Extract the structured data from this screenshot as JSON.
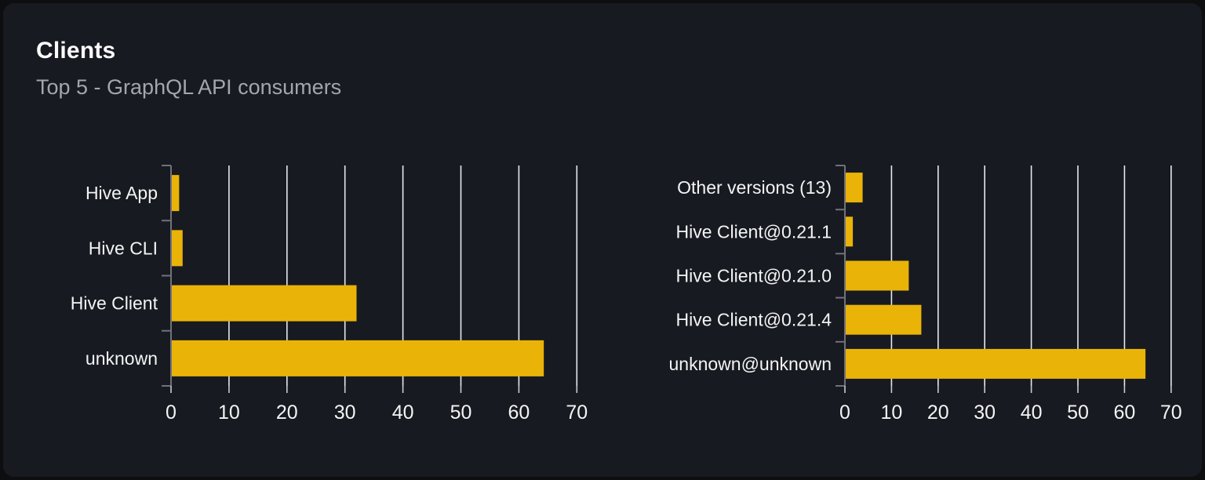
{
  "card": {
    "title": "Clients",
    "subtitle": "Top 5 - GraphQL API consumers"
  },
  "colors": {
    "bar": "#eab308",
    "gridline": "#e6e8ee",
    "axis": "#71717a",
    "x_tick": "#c9ccd4",
    "label": "#f4f4f5",
    "title": "#fcfcfc",
    "subtitle": "#a5a6ad",
    "card_bg": "#171a20",
    "page_bg": "#0d0e10"
  },
  "chart_data": [
    {
      "type": "bar",
      "orientation": "horizontal",
      "name": "clients-top5",
      "title": "",
      "xlabel": "",
      "ylabel": "",
      "categories": [
        "Hive App",
        "Hive CLI",
        "Hive Client",
        "unknown"
      ],
      "values": [
        1.4,
        2.0,
        32.0,
        64.3
      ],
      "xlim": [
        0,
        72
      ],
      "x_ticks": [
        0,
        10,
        20,
        30,
        40,
        50,
        60,
        70
      ],
      "grid": true,
      "legend": false
    },
    {
      "type": "bar",
      "orientation": "horizontal",
      "name": "client-versions-top5",
      "title": "",
      "xlabel": "",
      "ylabel": "",
      "categories": [
        "Other versions (13)",
        "Hive Client@0.21.1",
        "Hive Client@0.21.0",
        "Hive Client@0.21.4",
        "unknown@unknown"
      ],
      "values": [
        3.8,
        1.7,
        13.7,
        16.4,
        64.5
      ],
      "xlim": [
        0,
        72
      ],
      "x_ticks": [
        0,
        10,
        20,
        30,
        40,
        50,
        60,
        70
      ],
      "grid": true,
      "legend": false
    }
  ]
}
